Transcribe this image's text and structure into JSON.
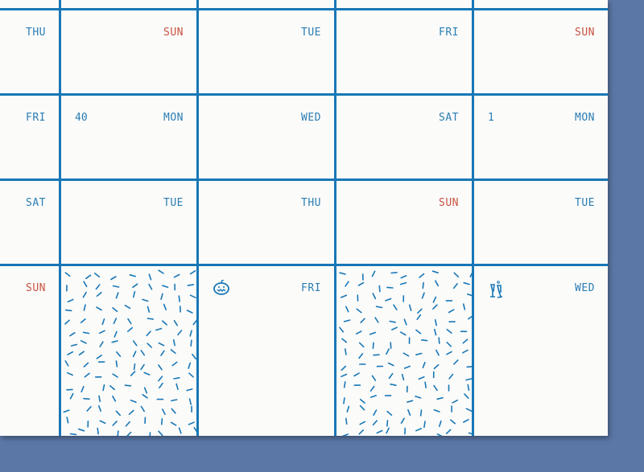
{
  "colors": {
    "accent": "#1877b6",
    "weekend": "#c9523f",
    "background": "#5b77a6"
  },
  "rows": [
    [
      {
        "day": "THU"
      },
      {
        "day": "SUN",
        "weekend": true
      },
      {
        "day": "TUE"
      },
      {
        "day": "FRI"
      },
      {
        "day": "SUN",
        "weekend": true
      }
    ],
    [
      {
        "day": "FRI"
      },
      {
        "day": "MON",
        "week": "40"
      },
      {
        "day": "WED"
      },
      {
        "day": "SAT"
      },
      {
        "day": "MON",
        "week": "1"
      }
    ],
    [
      {
        "day": "SAT"
      },
      {
        "day": "TUE"
      },
      {
        "day": "THU"
      },
      {
        "day": "SUN",
        "weekend": true
      },
      {
        "day": "TUE"
      }
    ],
    [
      {
        "day": "SUN",
        "weekend": true
      },
      {
        "pattern": "confetti"
      },
      {
        "day": "FRI",
        "icon": "pumpkin-icon"
      },
      {
        "pattern": "confetti"
      },
      {
        "day": "WED",
        "icon": "champagne-glasses-icon"
      }
    ]
  ]
}
